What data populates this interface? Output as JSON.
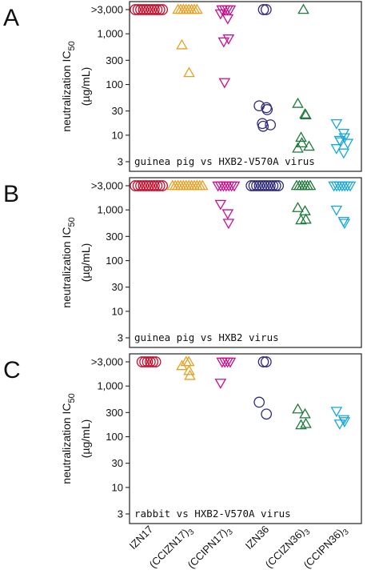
{
  "figure": {
    "categories": [
      "IZN17",
      "(CCIZN17)3",
      "(CCIPN17)3",
      "IZN36",
      "(CCIZN36)3",
      "(CCIPN36)3"
    ],
    "category_display": [
      {
        "main": "IZN17",
        "sub": ""
      },
      {
        "main": "(CCIZN17)",
        "sub": "3"
      },
      {
        "main": "(CCIPN17)",
        "sub": "3"
      },
      {
        "main": "IZN36",
        "sub": ""
      },
      {
        "main": "(CCIZN36)",
        "sub": "3"
      },
      {
        "main": "(CCIPN36)",
        "sub": "3"
      }
    ],
    "colors": [
      "#c8102e",
      "#e8a020",
      "#c8108c",
      "#2e2a7a",
      "#1f7a3a",
      "#1aa8d8"
    ],
    "markers": [
      "circle",
      "triangle-up",
      "triangle-down",
      "circle",
      "triangle-up",
      "triangle-down"
    ],
    "ylabel_main": "neutralization IC",
    "ylabel_sub": "50",
    "ylabel_unit": "(µg/mL)",
    "ytick_labels": [
      ">3,000",
      "1,000",
      "300",
      "100",
      "30",
      "10",
      "3"
    ]
  },
  "chart_data": [
    {
      "type": "scatter",
      "panel": "A",
      "annotation": "guinea pig vs HXB2-V570A virus",
      "y_scale": "log",
      "ylim": [
        2.5,
        3500
      ],
      "ytick_values": [
        3000,
        1000,
        300,
        100,
        30,
        10,
        3
      ],
      "series": [
        {
          "values": [
            3000,
            3000,
            3000,
            3000,
            3000,
            3000,
            3000,
            3000,
            3000,
            3000,
            3000
          ]
        },
        {
          "values": [
            3000,
            3000,
            3000,
            3000,
            3000,
            3000,
            3000,
            3000,
            600,
            170
          ]
        },
        {
          "values": [
            3000,
            3000,
            3000,
            3000,
            2500,
            2000,
            800,
            700,
            110
          ]
        },
        {
          "values": [
            3000,
            3000,
            38,
            35,
            32,
            17,
            15,
            16
          ]
        },
        {
          "values": [
            3000,
            42,
            26,
            25,
            9,
            7,
            6,
            5.5
          ]
        },
        {
          "values": [
            17,
            11,
            9,
            8,
            7.5,
            7,
            5.5,
            4.5
          ]
        }
      ]
    },
    {
      "type": "scatter",
      "panel": "B",
      "annotation": "guinea pig vs HXB2 virus",
      "y_scale": "log",
      "ylim": [
        2.5,
        3500
      ],
      "ytick_values": [
        3000,
        1000,
        300,
        100,
        30,
        10,
        3
      ],
      "series": [
        {
          "values": [
            3000,
            3000,
            3000,
            3000,
            3000,
            3000,
            3000,
            3000,
            3000,
            3000,
            3000
          ]
        },
        {
          "values": [
            3000,
            3000,
            3000,
            3000,
            3000,
            3000,
            3000,
            3000,
            3000,
            3000,
            3000,
            3000
          ]
        },
        {
          "values": [
            3000,
            3000,
            3000,
            3000,
            3000,
            3000,
            3000,
            1300,
            850,
            550
          ]
        },
        {
          "values": [
            3000,
            3000,
            3000,
            3000,
            3000,
            3000,
            3000,
            3000,
            3000,
            3000,
            3000
          ]
        },
        {
          "values": [
            3000,
            3000,
            3000,
            3000,
            3000,
            3000,
            1100,
            950,
            650,
            630
          ]
        },
        {
          "values": [
            3000,
            3000,
            3000,
            3000,
            3000,
            3000,
            3000,
            1000,
            600,
            550
          ]
        }
      ]
    },
    {
      "type": "scatter",
      "panel": "C",
      "annotation": "rabbit vs HXB2-V570A virus",
      "y_scale": "log",
      "ylim": [
        2.5,
        3500
      ],
      "ytick_values": [
        3000,
        1000,
        300,
        100,
        30,
        10,
        3
      ],
      "series": [
        {
          "values": [
            3000,
            3000,
            3000,
            3000,
            3000,
            3000
          ]
        },
        {
          "values": [
            3000,
            3000,
            2500,
            2000,
            1600
          ]
        },
        {
          "values": [
            3000,
            3000,
            3000,
            3000,
            1150
          ]
        },
        {
          "values": [
            3000,
            3000,
            480,
            280
          ]
        },
        {
          "values": [
            350,
            280,
            180,
            170
          ]
        },
        {
          "values": [
            320,
            220,
            200,
            180
          ]
        }
      ]
    }
  ]
}
